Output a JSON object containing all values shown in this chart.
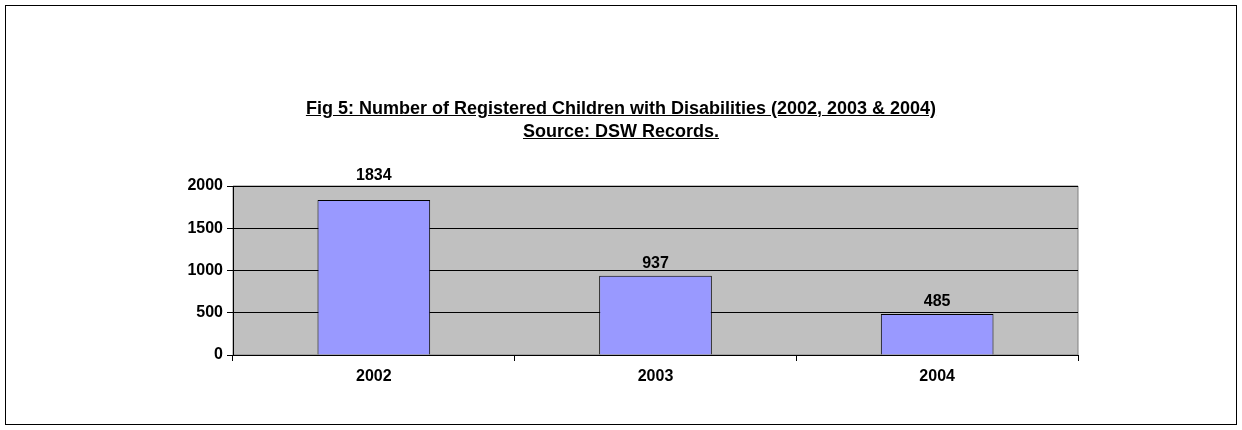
{
  "chart_data": {
    "type": "bar",
    "title": "Fig 5: Number of Registered Children with Disabilities (2002, 2003 & 2004)",
    "subtitle": "Source: DSW Records.",
    "categories": [
      "2002",
      "2003",
      "2004"
    ],
    "values": [
      1834,
      937,
      485
    ],
    "color": "#9999ff",
    "ylim": [
      0,
      2000
    ],
    "yticks": [
      0,
      500,
      1000,
      1500,
      2000
    ],
    "grid": "y",
    "data_labels": true,
    "legend": false
  }
}
